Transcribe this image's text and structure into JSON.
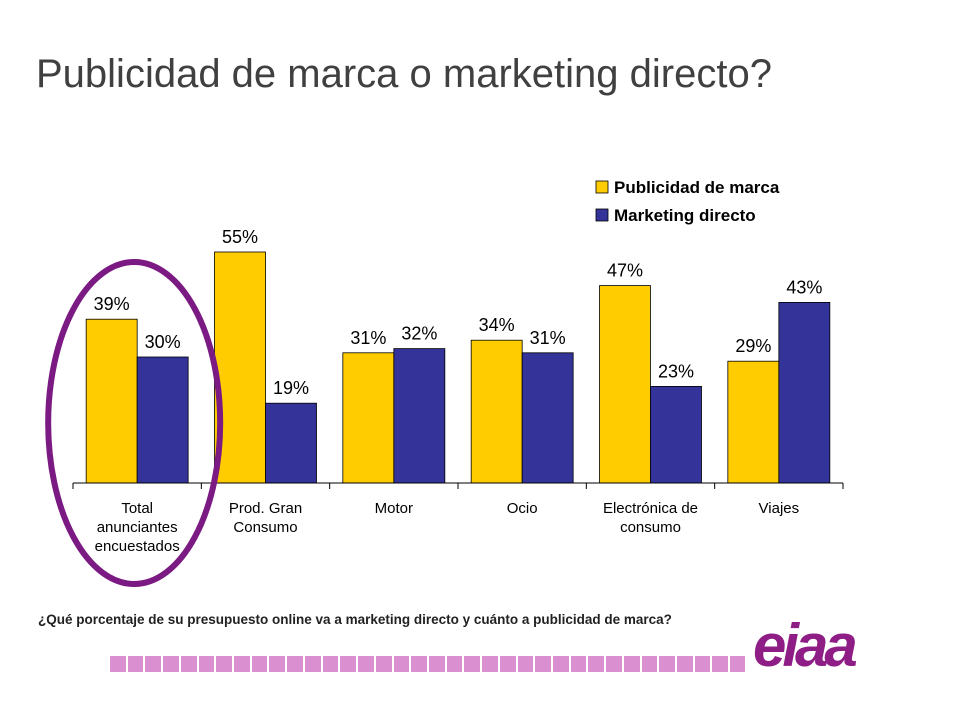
{
  "page": {
    "title": "Publicidad de marca o marketing directo?",
    "question": "¿Qué porcentaje de su presupuesto online va a marketing directo y cuánto a publicidad de marca?",
    "logo_text": "eiaa"
  },
  "colors": {
    "publicidad": "#FFCC00",
    "marketing": "#333399",
    "highlight_ellipse": "#7B1A83",
    "strip": "#D98FD0",
    "logo": "#8E1E86"
  },
  "chart_data": {
    "type": "bar",
    "categories": [
      [
        "Total",
        "anunciantes",
        "encuestados"
      ],
      [
        "Prod. Gran",
        "Consumo"
      ],
      [
        "Motor"
      ],
      [
        "Ocio"
      ],
      [
        "Electrónica de",
        "consumo"
      ],
      [
        "Viajes"
      ]
    ],
    "series": [
      {
        "name": "Publicidad de marca",
        "values": [
          39,
          55,
          31,
          34,
          47,
          29
        ]
      },
      {
        "name": "Marketing directo",
        "values": [
          30,
          19,
          32,
          31,
          23,
          43
        ]
      }
    ],
    "value_suffix": "%",
    "ylim": [
      0,
      70
    ],
    "legend_position": "top-right",
    "grid": false,
    "highlighted_category": 0
  }
}
